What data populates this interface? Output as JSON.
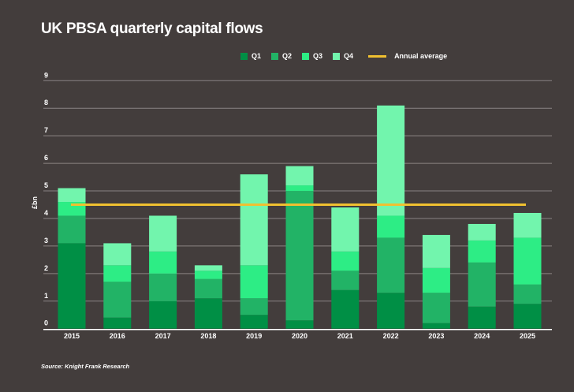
{
  "chart_data": {
    "type": "bar",
    "stacked": true,
    "title": "UK PBSA quarterly capital flows",
    "ylabel": "£bn",
    "xlabel": "",
    "ylim": [
      0,
      9
    ],
    "yticks": [
      "0",
      "1",
      "2",
      "3",
      "4",
      "5",
      "6",
      "7",
      "8",
      "9"
    ],
    "grid": true,
    "legend_position": "top",
    "categories": [
      "2015",
      "2016",
      "2017",
      "2018",
      "2019",
      "2020",
      "2021",
      "2022",
      "2023",
      "2024",
      "2025"
    ],
    "series": [
      {
        "name": "Q1",
        "color": "#008f45",
        "values": [
          3.1,
          0.4,
          1.0,
          1.1,
          0.5,
          0.3,
          1.4,
          1.3,
          0.2,
          0.8,
          0.9
        ]
      },
      {
        "name": "Q2",
        "color": "#22b366",
        "values": [
          1.0,
          1.3,
          1.0,
          0.7,
          0.6,
          4.7,
          0.7,
          2.0,
          1.1,
          1.6,
          0.7
        ]
      },
      {
        "name": "Q3",
        "color": "#2ded85",
        "values": [
          0.5,
          0.6,
          0.8,
          0.3,
          1.2,
          0.2,
          0.7,
          0.8,
          0.9,
          0.8,
          1.7
        ]
      },
      {
        "name": "Q4",
        "color": "#72f5ad",
        "values": [
          0.5,
          0.8,
          1.3,
          0.2,
          3.3,
          0.7,
          1.6,
          4.0,
          1.2,
          0.6,
          0.9
        ]
      }
    ],
    "average": {
      "name": "Annual average",
      "value": 4.5,
      "color": "#f0c030"
    },
    "source": "Source: Knight Frank Research"
  }
}
